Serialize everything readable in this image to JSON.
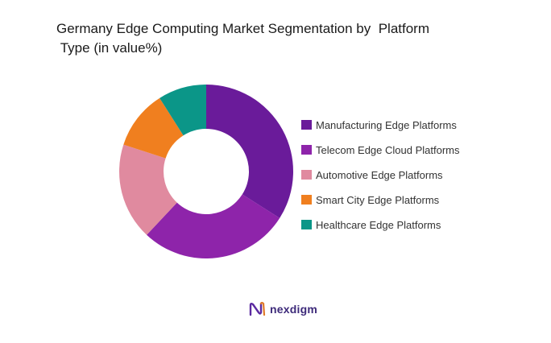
{
  "chart_data": {
    "type": "pie",
    "donut": true,
    "title": "Germany Edge Computing Market Segmentation by  Platform\n Type (in value%)",
    "categories": [
      "Manufacturing Edge Platforms",
      "Telecom Edge Cloud Platforms",
      "Automotive Edge Platforms",
      "Smart City Edge Platforms",
      "Healthcare Edge Platforms"
    ],
    "values": [
      34,
      28,
      18,
      11,
      9
    ],
    "colors": [
      "#6a1b9a",
      "#8e24aa",
      "#e08a9f",
      "#f07f1f",
      "#0b9688"
    ],
    "legend_position": "right"
  },
  "brand": {
    "name": "nexdigm",
    "logo_icon": "nexdigm-logo-icon"
  }
}
